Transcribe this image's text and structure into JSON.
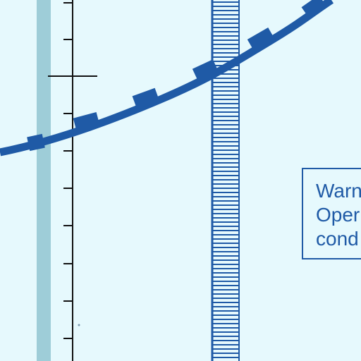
{
  "callout": {
    "lines": [
      "Warn",
      "Oper",
      "cond"
    ]
  },
  "colors": {
    "background": "#e6f9fd",
    "curve": "#1f5aa6",
    "axis": "#111111",
    "light_band": "#9ecdd8",
    "hatched_band": "#1f5aa6"
  }
}
